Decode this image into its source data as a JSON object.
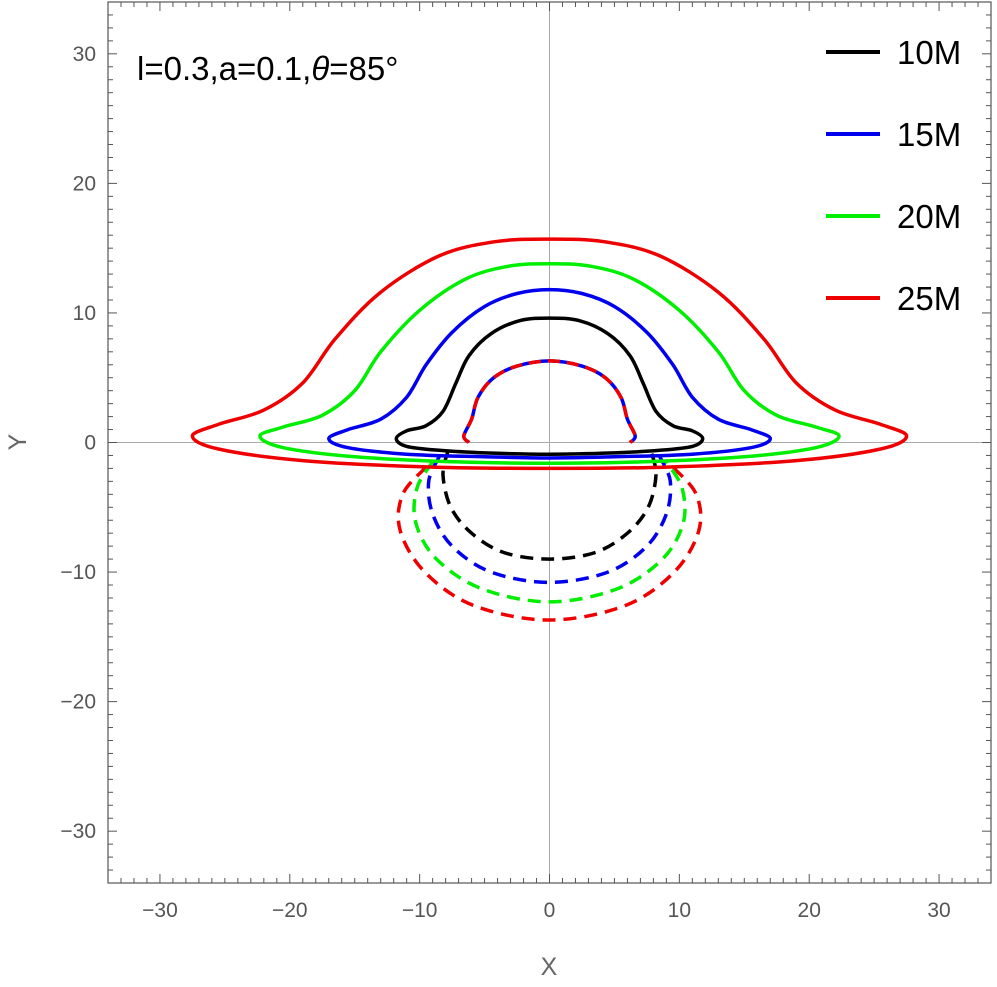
{
  "chart_data": {
    "type": "line",
    "annotation": {
      "prefix": "l=0.3,a=0.1,",
      "theta_symbol": "θ",
      "suffix": "=85°"
    },
    "xlabel": "X",
    "ylabel": "Y",
    "xlim": [
      -34,
      34
    ],
    "ylim": [
      -34,
      34
    ],
    "x_ticks": [
      -30,
      -20,
      -10,
      0,
      10,
      20,
      30
    ],
    "y_ticks": [
      -30,
      -20,
      -10,
      0,
      10,
      20,
      30
    ],
    "x_tick_labels": [
      "−30",
      "−20",
      "−10",
      "0",
      "10",
      "20",
      "30"
    ],
    "y_tick_labels": [
      "−30",
      "−20",
      "−10",
      "0",
      "10",
      "20",
      "30"
    ],
    "legend_position": "top-right",
    "colors": {
      "10M": "#000000",
      "15M": "#0000ee",
      "20M": "#00ee00",
      "25M": "#ee0000",
      "axis": "#555555",
      "zeroline": "#aaaaaa"
    },
    "series": [
      {
        "name": "10M",
        "color": "#000000",
        "solid": [
          [
            -11.8,
            0.3
          ],
          [
            -11.0,
            0.9
          ],
          [
            -9.5,
            1.3
          ],
          [
            -8.2,
            2.4
          ],
          [
            -7.2,
            4.6
          ],
          [
            -6.2,
            6.7
          ],
          [
            -4.5,
            8.4
          ],
          [
            -2.3,
            9.4
          ],
          [
            0,
            9.6
          ],
          [
            2.3,
            9.4
          ],
          [
            4.5,
            8.4
          ],
          [
            6.2,
            6.7
          ],
          [
            7.2,
            4.6
          ],
          [
            8.2,
            2.4
          ],
          [
            9.5,
            1.3
          ],
          [
            11.0,
            0.9
          ],
          [
            11.8,
            0.3
          ],
          [
            11.0,
            -0.3
          ],
          [
            8.5,
            -0.6
          ],
          [
            5.0,
            -0.8
          ],
          [
            0,
            -0.9
          ],
          [
            -5.0,
            -0.8
          ],
          [
            -8.5,
            -0.6
          ],
          [
            -11.0,
            -0.3
          ],
          [
            -11.8,
            0.3
          ]
        ],
        "dashed": [
          [
            -7.8,
            -0.6
          ],
          [
            -8.2,
            -2.5
          ],
          [
            -7.6,
            -5.0
          ],
          [
            -6.0,
            -7.0
          ],
          [
            -3.5,
            -8.5
          ],
          [
            0,
            -9.0
          ],
          [
            3.5,
            -8.5
          ],
          [
            6.0,
            -7.0
          ],
          [
            7.6,
            -5.0
          ],
          [
            8.2,
            -2.5
          ],
          [
            7.8,
            -0.6
          ]
        ]
      },
      {
        "name": "15M",
        "color": "#0000ee",
        "solid": [
          [
            -17.0,
            0.3
          ],
          [
            -15.5,
            1.0
          ],
          [
            -13.0,
            1.8
          ],
          [
            -11.0,
            3.5
          ],
          [
            -9.5,
            6.0
          ],
          [
            -7.5,
            8.5
          ],
          [
            -5.0,
            10.5
          ],
          [
            -2.5,
            11.5
          ],
          [
            0,
            11.8
          ],
          [
            2.5,
            11.5
          ],
          [
            5.0,
            10.5
          ],
          [
            7.5,
            8.5
          ],
          [
            9.5,
            6.0
          ],
          [
            11.0,
            3.5
          ],
          [
            13.0,
            1.8
          ],
          [
            15.5,
            1.0
          ],
          [
            17.0,
            0.3
          ],
          [
            15.5,
            -0.4
          ],
          [
            11.0,
            -0.9
          ],
          [
            5.0,
            -1.1
          ],
          [
            0,
            -1.2
          ],
          [
            -5.0,
            -1.1
          ],
          [
            -11.0,
            -0.9
          ],
          [
            -15.5,
            -0.4
          ],
          [
            -17.0,
            0.3
          ]
        ],
        "dashed": [
          [
            -8.5,
            -1.1
          ],
          [
            -9.3,
            -3.0
          ],
          [
            -9.0,
            -5.5
          ],
          [
            -7.5,
            -8.0
          ],
          [
            -4.5,
            -10.0
          ],
          [
            0,
            -10.8
          ],
          [
            4.5,
            -10.0
          ],
          [
            7.5,
            -8.0
          ],
          [
            9.0,
            -5.5
          ],
          [
            9.3,
            -3.0
          ],
          [
            8.5,
            -1.1
          ]
        ]
      },
      {
        "name": "20M",
        "color": "#00ee00",
        "solid": [
          [
            -22.3,
            0.5
          ],
          [
            -20.5,
            1.2
          ],
          [
            -17.5,
            2.1
          ],
          [
            -15.0,
            4.0
          ],
          [
            -13.0,
            7.0
          ],
          [
            -10.0,
            10.2
          ],
          [
            -6.5,
            12.6
          ],
          [
            -3.2,
            13.6
          ],
          [
            0,
            13.8
          ],
          [
            3.2,
            13.6
          ],
          [
            6.5,
            12.6
          ],
          [
            10.0,
            10.2
          ],
          [
            13.0,
            7.0
          ],
          [
            15.0,
            4.0
          ],
          [
            17.5,
            2.1
          ],
          [
            20.5,
            1.2
          ],
          [
            22.3,
            0.5
          ],
          [
            20.5,
            -0.4
          ],
          [
            15.0,
            -1.1
          ],
          [
            7.0,
            -1.5
          ],
          [
            0,
            -1.6
          ],
          [
            -7.0,
            -1.5
          ],
          [
            -15.0,
            -1.1
          ],
          [
            -20.5,
            -0.4
          ],
          [
            -22.3,
            0.5
          ]
        ],
        "dashed": [
          [
            -9.0,
            -1.5
          ],
          [
            -10.2,
            -3.5
          ],
          [
            -10.3,
            -6.2
          ],
          [
            -8.7,
            -9.0
          ],
          [
            -5.2,
            -11.3
          ],
          [
            0,
            -12.3
          ],
          [
            5.2,
            -11.3
          ],
          [
            8.7,
            -9.0
          ],
          [
            10.3,
            -6.2
          ],
          [
            10.2,
            -3.5
          ],
          [
            9.0,
            -1.5
          ]
        ]
      },
      {
        "name": "25M",
        "color": "#ee0000",
        "solid": [
          [
            -27.5,
            0.5
          ],
          [
            -25.5,
            1.4
          ],
          [
            -22.0,
            2.5
          ],
          [
            -19.0,
            4.6
          ],
          [
            -16.5,
            8.0
          ],
          [
            -13.0,
            11.6
          ],
          [
            -8.5,
            14.4
          ],
          [
            -4.2,
            15.5
          ],
          [
            0,
            15.7
          ],
          [
            4.2,
            15.5
          ],
          [
            8.5,
            14.4
          ],
          [
            13.0,
            11.6
          ],
          [
            16.5,
            8.0
          ],
          [
            19.0,
            4.6
          ],
          [
            22.0,
            2.5
          ],
          [
            25.5,
            1.4
          ],
          [
            27.5,
            0.5
          ],
          [
            25.5,
            -0.5
          ],
          [
            19.0,
            -1.4
          ],
          [
            9.0,
            -1.9
          ],
          [
            0,
            -2.0
          ],
          [
            -9.0,
            -1.9
          ],
          [
            -19.0,
            -1.4
          ],
          [
            -25.5,
            -0.5
          ],
          [
            -27.5,
            0.5
          ]
        ],
        "dashed": [
          [
            -9.5,
            -1.9
          ],
          [
            -11.3,
            -4.0
          ],
          [
            -11.5,
            -6.8
          ],
          [
            -9.6,
            -10.0
          ],
          [
            -5.8,
            -12.6
          ],
          [
            0,
            -13.7
          ],
          [
            5.8,
            -12.6
          ],
          [
            9.6,
            -10.0
          ],
          [
            11.5,
            -6.8
          ],
          [
            11.3,
            -4.0
          ],
          [
            9.5,
            -1.9
          ]
        ]
      }
    ],
    "common_dashed": {
      "colors": [
        "#ee0000",
        "#0000ee"
      ],
      "points": [
        [
          -6.2,
          0.0
        ],
        [
          -6.6,
          0.5
        ],
        [
          -6.0,
          1.8
        ],
        [
          -5.5,
          3.5
        ],
        [
          -4.3,
          5.0
        ],
        [
          -2.5,
          5.9
        ],
        [
          0,
          6.3
        ],
        [
          2.5,
          5.9
        ],
        [
          4.3,
          5.0
        ],
        [
          5.5,
          3.5
        ],
        [
          6.0,
          1.8
        ],
        [
          6.6,
          0.5
        ],
        [
          6.2,
          0.0
        ]
      ]
    }
  }
}
